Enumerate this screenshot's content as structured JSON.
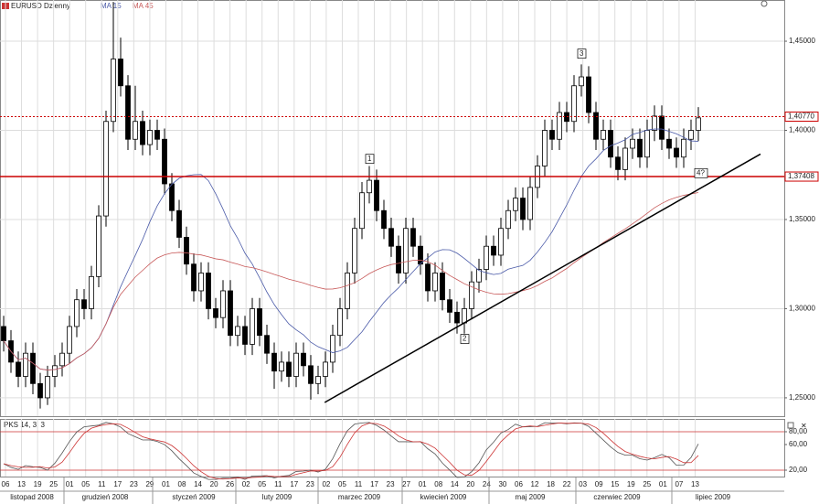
{
  "chart_data": {
    "type": "candlestick",
    "symbol": "EURUSD Dzienny",
    "indicators": [
      {
        "label": "MA 15",
        "period": 15,
        "color": "#4a5aa8"
      },
      {
        "label": "MA 45",
        "period": 45,
        "color": "#c85a5a"
      }
    ],
    "ylim": [
      1.2397,
      1.4731
    ],
    "yticks": [
      {
        "value": 1.45,
        "label": "1,45000"
      },
      {
        "value": 1.4,
        "label": "1,40000"
      },
      {
        "value": 1.35,
        "label": "1,35000"
      },
      {
        "value": 1.3,
        "label": "1,30000"
      },
      {
        "value": 1.25,
        "label": "1,25000"
      }
    ],
    "levels": [
      {
        "value": 1.4077,
        "label": "1,40770",
        "style": "dotted",
        "color": "#cc0000"
      },
      {
        "value": 1.37408,
        "label": "1,37408",
        "style": "solid",
        "color": "#cc0000"
      }
    ],
    "wave_labels": [
      {
        "text": "1",
        "index": 50,
        "price": 1.384
      },
      {
        "text": "2",
        "index": 63,
        "price": 1.283
      },
      {
        "text": "3",
        "index": 79,
        "price": 1.443
      },
      {
        "text": "4?",
        "index": 95,
        "price": 1.376
      }
    ],
    "trendline": [
      [
        43.9,
        1.2474
      ],
      [
        103.5,
        1.3867
      ]
    ],
    "grid": true,
    "ohlc": [
      [
        1.29,
        1.296,
        1.276,
        1.282
      ],
      [
        1.282,
        1.288,
        1.264,
        1.27
      ],
      [
        1.27,
        1.276,
        1.256,
        1.262
      ],
      [
        1.262,
        1.281,
        1.256,
        1.275
      ],
      [
        1.275,
        1.281,
        1.252,
        1.258
      ],
      [
        1.258,
        1.264,
        1.244,
        1.25
      ],
      [
        1.25,
        1.268,
        1.246,
        1.262
      ],
      [
        1.262,
        1.274,
        1.256,
        1.268
      ],
      [
        1.268,
        1.281,
        1.262,
        1.275
      ],
      [
        1.275,
        1.296,
        1.269,
        1.29
      ],
      [
        1.29,
        1.311,
        1.284,
        1.305
      ],
      [
        1.305,
        1.311,
        1.294,
        1.3
      ],
      [
        1.3,
        1.324,
        1.294,
        1.318
      ],
      [
        1.318,
        1.358,
        1.312,
        1.352
      ],
      [
        1.352,
        1.411,
        1.346,
        1.405
      ],
      [
        1.405,
        1.472,
        1.399,
        1.44
      ],
      [
        1.44,
        1.452,
        1.419,
        1.425
      ],
      [
        1.425,
        1.431,
        1.389,
        1.395
      ],
      [
        1.395,
        1.425,
        1.389,
        1.405
      ],
      [
        1.405,
        1.411,
        1.386,
        1.392
      ],
      [
        1.392,
        1.406,
        1.386,
        1.4
      ],
      [
        1.4,
        1.406,
        1.389,
        1.395
      ],
      [
        1.395,
        1.401,
        1.364,
        1.37
      ],
      [
        1.37,
        1.376,
        1.349,
        1.355
      ],
      [
        1.355,
        1.361,
        1.334,
        1.34
      ],
      [
        1.34,
        1.346,
        1.319,
        1.325
      ],
      [
        1.325,
        1.331,
        1.304,
        1.31
      ],
      [
        1.31,
        1.326,
        1.304,
        1.32
      ],
      [
        1.32,
        1.326,
        1.294,
        1.3
      ],
      [
        1.3,
        1.306,
        1.289,
        1.295
      ],
      [
        1.295,
        1.316,
        1.289,
        1.31
      ],
      [
        1.31,
        1.316,
        1.279,
        1.285
      ],
      [
        1.285,
        1.296,
        1.279,
        1.29
      ],
      [
        1.29,
        1.296,
        1.274,
        1.28
      ],
      [
        1.28,
        1.306,
        1.274,
        1.3
      ],
      [
        1.3,
        1.306,
        1.279,
        1.285
      ],
      [
        1.285,
        1.291,
        1.269,
        1.275
      ],
      [
        1.275,
        1.281,
        1.255,
        1.265
      ],
      [
        1.265,
        1.276,
        1.259,
        1.27
      ],
      [
        1.27,
        1.276,
        1.256,
        1.262
      ],
      [
        1.262,
        1.281,
        1.256,
        1.275
      ],
      [
        1.275,
        1.281,
        1.262,
        1.268
      ],
      [
        1.268,
        1.274,
        1.249,
        1.258
      ],
      [
        1.258,
        1.268,
        1.252,
        1.262
      ],
      [
        1.262,
        1.276,
        1.256,
        1.27
      ],
      [
        1.27,
        1.291,
        1.264,
        1.285
      ],
      [
        1.285,
        1.306,
        1.279,
        1.3
      ],
      [
        1.3,
        1.326,
        1.294,
        1.32
      ],
      [
        1.32,
        1.351,
        1.314,
        1.345
      ],
      [
        1.345,
        1.371,
        1.339,
        1.365
      ],
      [
        1.365,
        1.38,
        1.359,
        1.372
      ],
      [
        1.372,
        1.378,
        1.349,
        1.355
      ],
      [
        1.355,
        1.361,
        1.339,
        1.345
      ],
      [
        1.345,
        1.351,
        1.329,
        1.335
      ],
      [
        1.335,
        1.341,
        1.314,
        1.32
      ],
      [
        1.32,
        1.351,
        1.314,
        1.345
      ],
      [
        1.345,
        1.351,
        1.329,
        1.335
      ],
      [
        1.335,
        1.341,
        1.319,
        1.325
      ],
      [
        1.325,
        1.331,
        1.304,
        1.31
      ],
      [
        1.31,
        1.326,
        1.304,
        1.32
      ],
      [
        1.32,
        1.326,
        1.299,
        1.305
      ],
      [
        1.305,
        1.311,
        1.292,
        1.298
      ],
      [
        1.298,
        1.304,
        1.286,
        1.292
      ],
      [
        1.292,
        1.306,
        1.286,
        1.3
      ],
      [
        1.3,
        1.321,
        1.294,
        1.315
      ],
      [
        1.315,
        1.328,
        1.309,
        1.322
      ],
      [
        1.322,
        1.341,
        1.316,
        1.335
      ],
      [
        1.335,
        1.341,
        1.324,
        1.33
      ],
      [
        1.33,
        1.351,
        1.324,
        1.345
      ],
      [
        1.345,
        1.361,
        1.339,
        1.355
      ],
      [
        1.355,
        1.368,
        1.349,
        1.362
      ],
      [
        1.362,
        1.368,
        1.344,
        1.35
      ],
      [
        1.35,
        1.374,
        1.344,
        1.368
      ],
      [
        1.368,
        1.386,
        1.362,
        1.38
      ],
      [
        1.38,
        1.406,
        1.374,
        1.4
      ],
      [
        1.4,
        1.406,
        1.389,
        1.395
      ],
      [
        1.395,
        1.416,
        1.389,
        1.41
      ],
      [
        1.41,
        1.416,
        1.399,
        1.405
      ],
      [
        1.405,
        1.431,
        1.399,
        1.425
      ],
      [
        1.425,
        1.437,
        1.419,
        1.43
      ],
      [
        1.43,
        1.436,
        1.404,
        1.41
      ],
      [
        1.41,
        1.416,
        1.389,
        1.395
      ],
      [
        1.395,
        1.406,
        1.389,
        1.4
      ],
      [
        1.4,
        1.406,
        1.379,
        1.385
      ],
      [
        1.385,
        1.391,
        1.372,
        1.378
      ],
      [
        1.378,
        1.396,
        1.372,
        1.39
      ],
      [
        1.39,
        1.401,
        1.384,
        1.395
      ],
      [
        1.395,
        1.401,
        1.379,
        1.385
      ],
      [
        1.385,
        1.406,
        1.379,
        1.4
      ],
      [
        1.4,
        1.414,
        1.394,
        1.408
      ],
      [
        1.408,
        1.414,
        1.389,
        1.395
      ],
      [
        1.395,
        1.401,
        1.384,
        1.39
      ],
      [
        1.39,
        1.396,
        1.379,
        1.385
      ],
      [
        1.385,
        1.401,
        1.379,
        1.395
      ],
      [
        1.395,
        1.406,
        1.389,
        1.4
      ],
      [
        1.4,
        1.413,
        1.394,
        1.407
      ]
    ],
    "stochastic": {
      "label": "PKS 14, 3, 3",
      "k": 14,
      "slow": 3,
      "d": 3,
      "ylim": [
        10,
        100
      ],
      "yticks": [
        {
          "value": 80,
          "label": "80,00"
        },
        {
          "value": 60,
          "label": "60,00"
        },
        {
          "value": 20,
          "label": "20,00"
        }
      ],
      "levels": [
        80,
        20
      ],
      "k_color": "#555555",
      "d_color": "#cc3333"
    },
    "day_labels": [
      "06",
      "13",
      "19",
      "25",
      "01",
      "05",
      "11",
      "17",
      "23",
      "29",
      "01",
      "08",
      "14",
      "20",
      "26",
      "02",
      "05",
      "11",
      "17",
      "23",
      "02",
      "05",
      "11",
      "17",
      "23",
      "27",
      "01",
      "08",
      "14",
      "20",
      "24",
      "30",
      "06",
      "12",
      "18",
      "22",
      "03",
      "09",
      "15",
      "19",
      "25",
      "01",
      "07",
      "13"
    ],
    "month_labels": [
      "listopad 2008",
      "grudzień 2008",
      "styczeń 2009",
      "luty 2009",
      "marzec 2009",
      "kwiecień 2009",
      "maj 2009",
      "czerwiec 2009",
      "lipiec 2009"
    ]
  }
}
